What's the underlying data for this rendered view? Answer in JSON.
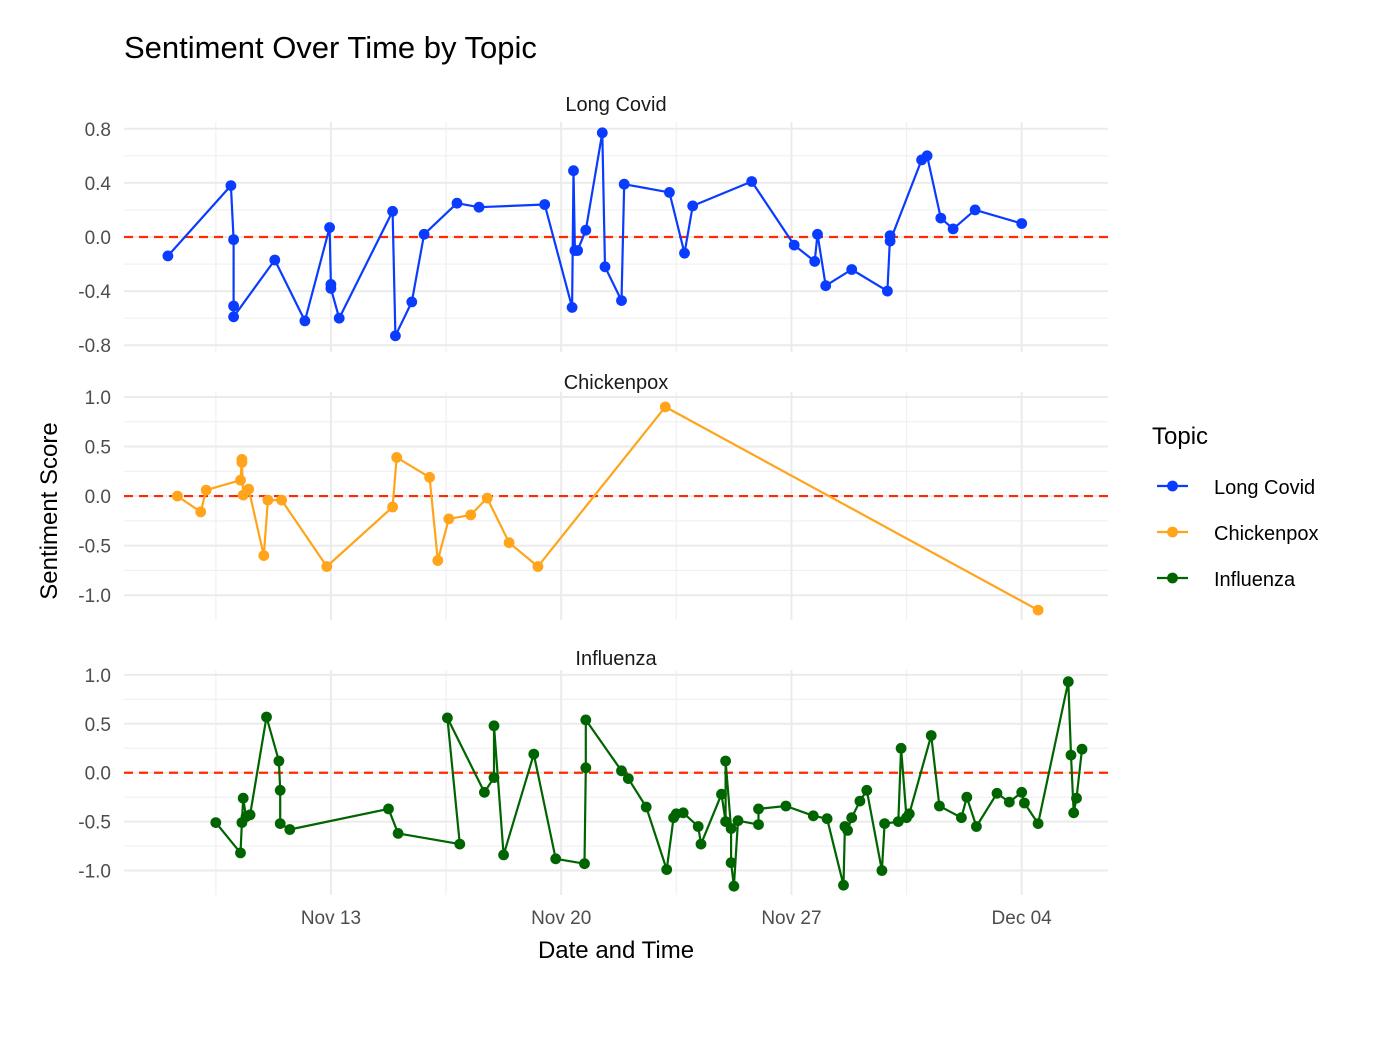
{
  "chart_data": {
    "type": "line",
    "title": "Sentiment Over Time by Topic",
    "xlabel": "Date and Time",
    "ylabel": "Sentiment Score",
    "legend": {
      "title": "Topic",
      "position": "right",
      "entries": [
        {
          "name": "Long Covid",
          "color": "#0a3cff"
        },
        {
          "name": "Chickenpox",
          "color": "#ffa41b"
        },
        {
          "name": "Influenza",
          "color": "#006400"
        }
      ]
    },
    "x_ticks": [
      "Nov 13",
      "Nov 20",
      "Nov 27",
      "Dec 04"
    ],
    "x_range": [
      "2023-11-06T17:00",
      "2023-12-06T15:00"
    ],
    "grid": true,
    "reference_line": {
      "y": 0,
      "color": "#ff2a00",
      "style": "dashed"
    },
    "panels": [
      {
        "name": "Long Covid",
        "color": "#0a3cff",
        "ylim": [
          -0.85,
          0.85
        ],
        "y_ticks": [
          0.8,
          0.4,
          0.0,
          -0.4,
          -0.8
        ],
        "y_tick_labels": [
          "0.8",
          "0.4",
          "0.0",
          "-0.4",
          "-0.8"
        ],
        "points": [
          [
            "2023-11-08T01:00",
            -0.14
          ],
          [
            "2023-11-09T23:00",
            0.38
          ],
          [
            "2023-11-10T01:00",
            -0.02
          ],
          [
            "2023-11-10T01:00",
            -0.51
          ],
          [
            "2023-11-10T01:00",
            -0.59
          ],
          [
            "2023-11-11T07:00",
            -0.17
          ],
          [
            "2023-11-12T05:00",
            -0.62
          ],
          [
            "2023-11-12T23:00",
            0.07
          ],
          [
            "2023-11-13T00:00",
            -0.35
          ],
          [
            "2023-11-13T00:00",
            -0.38
          ],
          [
            "2023-11-13T06:00",
            -0.6
          ],
          [
            "2023-11-14T21:00",
            0.19
          ],
          [
            "2023-11-14T23:00",
            -0.73
          ],
          [
            "2023-11-15T11:00",
            -0.48
          ],
          [
            "2023-11-15T20:00",
            0.02
          ],
          [
            "2023-11-16T20:00",
            0.25
          ],
          [
            "2023-11-17T12:00",
            0.22
          ],
          [
            "2023-11-19T12:00",
            0.24
          ],
          [
            "2023-11-20T08:00",
            -0.52
          ],
          [
            "2023-11-20T09:00",
            0.49
          ],
          [
            "2023-11-20T10:00",
            -0.1
          ],
          [
            "2023-11-20T12:00",
            -0.1
          ],
          [
            "2023-11-20T18:00",
            0.05
          ],
          [
            "2023-11-21T06:00",
            0.77
          ],
          [
            "2023-11-21T08:00",
            -0.22
          ],
          [
            "2023-11-21T20:00",
            -0.47
          ],
          [
            "2023-11-21T22:00",
            0.39
          ],
          [
            "2023-11-23T07:00",
            0.33
          ],
          [
            "2023-11-23T18:00",
            -0.12
          ],
          [
            "2023-11-24T00:00",
            0.23
          ],
          [
            "2023-11-25T19:00",
            0.41
          ],
          [
            "2023-11-27T02:00",
            -0.06
          ],
          [
            "2023-11-27T17:00",
            -0.18
          ],
          [
            "2023-11-27T19:00",
            0.02
          ],
          [
            "2023-11-28T01:00",
            -0.36
          ],
          [
            "2023-11-28T20:00",
            -0.24
          ],
          [
            "2023-11-29T22:00",
            -0.4
          ],
          [
            "2023-11-30T00:00",
            0.01
          ],
          [
            "2023-11-30T00:00",
            -0.03
          ],
          [
            "2023-11-30T23:00",
            0.57
          ],
          [
            "2023-12-01T03:00",
            0.6
          ],
          [
            "2023-12-01T13:00",
            0.14
          ],
          [
            "2023-12-01T22:00",
            0.06
          ],
          [
            "2023-12-02T14:00",
            0.2
          ],
          [
            "2023-12-04T00:00",
            0.1
          ]
        ]
      },
      {
        "name": "Chickenpox",
        "color": "#ffa41b",
        "ylim": [
          -1.25,
          1.05
        ],
        "y_ticks": [
          1.0,
          0.5,
          0.0,
          -0.5,
          -1.0
        ],
        "y_tick_labels": [
          "1.0",
          "0.5",
          "0.0",
          "-0.5",
          "-1.0"
        ],
        "points": [
          [
            "2023-11-08T08:00",
            0.0
          ],
          [
            "2023-11-09T01:00",
            -0.16
          ],
          [
            "2023-11-09T05:00",
            0.06
          ],
          [
            "2023-11-10T06:00",
            0.16
          ],
          [
            "2023-11-10T07:00",
            0.37
          ],
          [
            "2023-11-10T07:00",
            0.34
          ],
          [
            "2023-11-10T08:00",
            0.01
          ],
          [
            "2023-11-10T12:00",
            0.07
          ],
          [
            "2023-11-10T23:00",
            -0.6
          ],
          [
            "2023-11-11T02:00",
            -0.04
          ],
          [
            "2023-11-11T12:00",
            -0.04
          ],
          [
            "2023-11-12T21:00",
            -0.71
          ],
          [
            "2023-11-14T21:00",
            -0.11
          ],
          [
            "2023-11-15T00:00",
            0.39
          ],
          [
            "2023-11-16T00:00",
            0.19
          ],
          [
            "2023-11-16T06:00",
            -0.65
          ],
          [
            "2023-11-16T14:00",
            -0.23
          ],
          [
            "2023-11-17T06:00",
            -0.19
          ],
          [
            "2023-11-17T18:00",
            -0.02
          ],
          [
            "2023-11-18T10:00",
            -0.47
          ],
          [
            "2023-11-19T07:00",
            -0.71
          ],
          [
            "2023-11-23T04:00",
            0.9
          ],
          [
            "2023-12-04T12:00",
            -1.15
          ]
        ]
      },
      {
        "name": "Influenza",
        "color": "#006400",
        "ylim": [
          -1.25,
          1.05
        ],
        "y_ticks": [
          1.0,
          0.5,
          0.0,
          -0.5,
          -1.0
        ],
        "y_tick_labels": [
          "1.0",
          "0.5",
          "0.0",
          "-0.5",
          "-1.0"
        ],
        "points": [
          [
            "2023-11-09T12:00",
            -0.51
          ],
          [
            "2023-11-10T06:00",
            -0.82
          ],
          [
            "2023-11-10T07:00",
            -0.51
          ],
          [
            "2023-11-10T08:00",
            -0.26
          ],
          [
            "2023-11-10T10:00",
            -0.45
          ],
          [
            "2023-11-10T13:00",
            -0.43
          ],
          [
            "2023-11-11T01:00",
            0.57
          ],
          [
            "2023-11-11T10:00",
            0.12
          ],
          [
            "2023-11-11T11:00",
            -0.18
          ],
          [
            "2023-11-11T11:00",
            -0.52
          ],
          [
            "2023-11-11T18:00",
            -0.58
          ],
          [
            "2023-11-14T18:00",
            -0.37
          ],
          [
            "2023-11-15T01:00",
            -0.62
          ],
          [
            "2023-11-16T22:00",
            -0.73
          ],
          [
            "2023-11-16T13:00",
            0.56
          ],
          [
            "2023-11-17T16:00",
            -0.2
          ],
          [
            "2023-11-17T23:00",
            -0.05
          ],
          [
            "2023-11-17T23:00",
            0.48
          ],
          [
            "2023-11-18T06:00",
            -0.84
          ],
          [
            "2023-11-19T04:00",
            0.19
          ],
          [
            "2023-11-19T20:00",
            -0.88
          ],
          [
            "2023-11-20T17:00",
            -0.93
          ],
          [
            "2023-11-20T18:00",
            0.05
          ],
          [
            "2023-11-20T18:00",
            0.54
          ],
          [
            "2023-11-21T20:00",
            0.02
          ],
          [
            "2023-11-22T01:00",
            -0.06
          ],
          [
            "2023-11-22T14:00",
            -0.35
          ],
          [
            "2023-11-23T05:00",
            -0.99
          ],
          [
            "2023-11-23T10:00",
            -0.46
          ],
          [
            "2023-11-23T12:00",
            -0.42
          ],
          [
            "2023-11-23T17:00",
            -0.41
          ],
          [
            "2023-11-24T04:00",
            -0.55
          ],
          [
            "2023-11-24T06:00",
            -0.73
          ],
          [
            "2023-11-24T21:00",
            -0.22
          ],
          [
            "2023-11-25T00:00",
            -0.5
          ],
          [
            "2023-11-25T00:00",
            0.12
          ],
          [
            "2023-11-25T04:00",
            -0.57
          ],
          [
            "2023-11-25T04:00",
            -0.92
          ],
          [
            "2023-11-25T06:00",
            -1.16
          ],
          [
            "2023-11-25T09:00",
            -0.49
          ],
          [
            "2023-11-26T00:00",
            -0.53
          ],
          [
            "2023-11-26T00:00",
            -0.37
          ],
          [
            "2023-11-26T20:00",
            -0.34
          ],
          [
            "2023-11-27T16:00",
            -0.44
          ],
          [
            "2023-11-28T02:00",
            -0.47
          ],
          [
            "2023-11-28T14:00",
            -1.15
          ],
          [
            "2023-11-28T15:00",
            -0.55
          ],
          [
            "2023-11-28T17:00",
            -0.59
          ],
          [
            "2023-11-28T20:00",
            -0.46
          ],
          [
            "2023-11-29T02:00",
            -0.29
          ],
          [
            "2023-11-29T07:00",
            -0.18
          ],
          [
            "2023-11-29T18:00",
            -1.0
          ],
          [
            "2023-11-29T20:00",
            -0.52
          ],
          [
            "2023-11-30T06:00",
            -0.5
          ],
          [
            "2023-11-30T08:00",
            0.25
          ],
          [
            "2023-11-30T12:00",
            -0.46
          ],
          [
            "2023-11-30T14:00",
            -0.42
          ],
          [
            "2023-12-01T06:00",
            0.38
          ],
          [
            "2023-12-01T12:00",
            -0.34
          ],
          [
            "2023-12-02T04:00",
            -0.46
          ],
          [
            "2023-12-02T08:00",
            -0.25
          ],
          [
            "2023-12-02T15:00",
            -0.55
          ],
          [
            "2023-12-03T06:00",
            -0.21
          ],
          [
            "2023-12-03T15:00",
            -0.3
          ],
          [
            "2023-12-04T00:00",
            -0.2
          ],
          [
            "2023-12-04T02:00",
            -0.31
          ],
          [
            "2023-12-04T12:00",
            -0.52
          ],
          [
            "2023-12-05T10:00",
            0.93
          ],
          [
            "2023-12-05T12:00",
            0.18
          ],
          [
            "2023-12-05T14:00",
            -0.41
          ],
          [
            "2023-12-05T16:00",
            -0.26
          ],
          [
            "2023-12-05T20:00",
            0.24
          ]
        ]
      }
    ]
  }
}
